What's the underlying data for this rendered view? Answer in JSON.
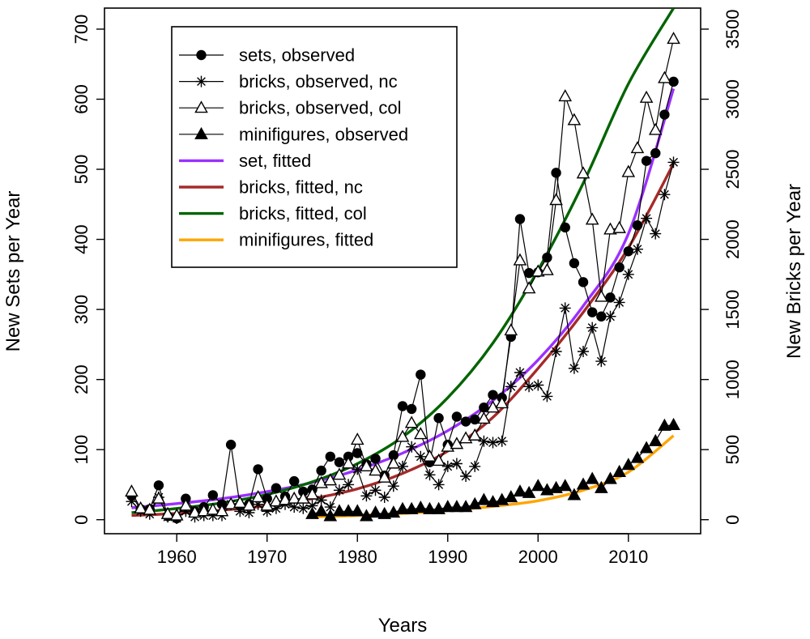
{
  "chart_data": {
    "type": "line",
    "xlabel": "Years",
    "ylabel_left": "New Sets per Year",
    "ylabel_right": "New Bricks per Year",
    "xlim": [
      1952,
      2018
    ],
    "ylim_left": [
      -20,
      730
    ],
    "ylim_right": [
      -100,
      3650
    ],
    "x_ticks": [
      1960,
      1970,
      1980,
      1990,
      2000,
      2010
    ],
    "y_ticks_left": [
      0,
      100,
      200,
      300,
      400,
      500,
      600,
      700
    ],
    "y_ticks_right": [
      0,
      500,
      1000,
      1500,
      2000,
      2500,
      3000,
      3500
    ],
    "grid": false,
    "legend_position": "top-left",
    "series": [
      {
        "name": "sets, observed",
        "axis": "left",
        "marker": "circle-filled",
        "color": "#000000",
        "x": [
          1955,
          1956,
          1957,
          1958,
          1959,
          1960,
          1961,
          1962,
          1963,
          1964,
          1965,
          1966,
          1967,
          1968,
          1969,
          1970,
          1971,
          1972,
          1973,
          1974,
          1975,
          1976,
          1977,
          1978,
          1979,
          1980,
          1981,
          1982,
          1983,
          1984,
          1985,
          1986,
          1987,
          1988,
          1989,
          1990,
          1991,
          1992,
          1993,
          1994,
          1995,
          1996,
          1997,
          1998,
          1999,
          2000,
          2001,
          2002,
          2003,
          2004,
          2005,
          2006,
          2007,
          2008,
          2009,
          2010,
          2011,
          2012,
          2013,
          2014,
          2015
        ],
        "y": [
          34,
          15,
          15,
          49,
          5,
          2,
          30,
          12,
          18,
          35,
          22,
          107,
          20,
          22,
          72,
          30,
          45,
          33,
          55,
          40,
          43,
          70,
          90,
          82,
          90,
          95,
          79,
          87,
          63,
          92,
          162,
          158,
          207,
          82,
          145,
          107,
          147,
          140,
          143,
          160,
          178,
          174,
          261,
          429,
          352,
          353,
          374,
          495,
          417,
          366,
          339,
          296,
          290,
          317,
          360,
          383,
          420,
          512,
          523,
          578,
          625
        ]
      },
      {
        "name": "bricks, observed, nc",
        "axis": "right",
        "marker": "asterisk",
        "color": "#000000",
        "x": [
          1955,
          1956,
          1957,
          1958,
          1959,
          1960,
          1961,
          1962,
          1963,
          1964,
          1965,
          1966,
          1967,
          1968,
          1969,
          1970,
          1971,
          1972,
          1973,
          1974,
          1975,
          1976,
          1977,
          1978,
          1979,
          1980,
          1981,
          1982,
          1983,
          1984,
          1985,
          1986,
          1987,
          1988,
          1989,
          1990,
          1991,
          1992,
          1993,
          1994,
          1995,
          1996,
          1997,
          1998,
          1999,
          2000,
          2001,
          2002,
          2003,
          2004,
          2005,
          2006,
          2007,
          2008,
          2009,
          2010,
          2011,
          2012,
          2013,
          2014,
          2015
        ],
        "y": [
          130,
          60,
          40,
          160,
          20,
          10,
          60,
          20,
          30,
          30,
          30,
          110,
          60,
          50,
          110,
          60,
          80,
          110,
          90,
          80,
          100,
          140,
          90,
          210,
          250,
          360,
          170,
          210,
          160,
          240,
          380,
          520,
          450,
          320,
          250,
          380,
          400,
          310,
          380,
          560,
          550,
          560,
          950,
          1050,
          950,
          960,
          880,
          1200,
          1510,
          1080,
          1200,
          1370,
          1130,
          1450,
          1550,
          1750,
          1930,
          2150,
          2040,
          2320,
          2550
        ]
      },
      {
        "name": "bricks, observed, col",
        "axis": "right",
        "marker": "triangle-open",
        "color": "#000000",
        "x": [
          1955,
          1956,
          1957,
          1958,
          1959,
          1960,
          1961,
          1962,
          1963,
          1964,
          1965,
          1966,
          1967,
          1968,
          1969,
          1970,
          1971,
          1972,
          1973,
          1974,
          1975,
          1976,
          1977,
          1978,
          1979,
          1980,
          1981,
          1982,
          1983,
          1984,
          1985,
          1986,
          1987,
          1988,
          1989,
          1990,
          1991,
          1992,
          1993,
          1994,
          1995,
          1996,
          1997,
          1998,
          1999,
          2000,
          2001,
          2002,
          2003,
          2004,
          2005,
          2006,
          2007,
          2008,
          2009,
          2010,
          2011,
          2012,
          2013,
          2014,
          2015
        ],
        "y": [
          200,
          80,
          70,
          150,
          40,
          30,
          100,
          50,
          60,
          70,
          60,
          110,
          120,
          100,
          160,
          100,
          130,
          140,
          150,
          150,
          180,
          260,
          280,
          320,
          400,
          570,
          380,
          350,
          300,
          400,
          590,
          690,
          610,
          450,
          420,
          520,
          540,
          580,
          600,
          720,
          800,
          830,
          1350,
          1850,
          1650,
          1770,
          1780,
          2280,
          3020,
          2850,
          2470,
          2140,
          1590,
          2070,
          2080,
          2480,
          2650,
          3010,
          2780,
          3150,
          3430
        ]
      },
      {
        "name": "minifigures, observed",
        "axis": "left",
        "marker": "triangle-filled",
        "color": "#000000",
        "x": [
          1975,
          1976,
          1977,
          1978,
          1979,
          1980,
          1981,
          1982,
          1983,
          1984,
          1985,
          1986,
          1987,
          1988,
          1989,
          1990,
          1991,
          1992,
          1993,
          1994,
          1995,
          1996,
          1997,
          1998,
          1999,
          2000,
          2001,
          2002,
          2003,
          2004,
          2005,
          2006,
          2007,
          2008,
          2009,
          2010,
          2011,
          2012,
          2013,
          2014,
          2015
        ],
        "y": [
          8,
          12,
          5,
          12,
          12,
          12,
          5,
          10,
          8,
          10,
          15,
          15,
          17,
          15,
          15,
          18,
          18,
          18,
          22,
          28,
          25,
          28,
          32,
          40,
          38,
          48,
          42,
          45,
          48,
          35,
          50,
          58,
          45,
          58,
          68,
          78,
          88,
          102,
          112,
          134,
          135
        ]
      },
      {
        "name": "set, fitted",
        "axis": "left",
        "line": "solid",
        "color": "#9b30ff",
        "x": [
          1955,
          1960,
          1965,
          1970,
          1975,
          1980,
          1985,
          1990,
          1995,
          2000,
          2005,
          2010,
          2015
        ],
        "y": [
          17,
          23,
          30,
          40,
          53,
          71,
          95,
          127,
          170,
          228,
          305,
          408,
          615
        ]
      },
      {
        "name": "bricks, fitted, nc",
        "axis": "right",
        "line": "solid",
        "color": "#a52a2a",
        "x": [
          1955,
          1960,
          1965,
          1970,
          1975,
          1980,
          1985,
          1990,
          1995,
          2000,
          2005,
          2010,
          2015
        ],
        "y": [
          30,
          45,
          68,
          100,
          150,
          220,
          330,
          490,
          730,
          1080,
          1480,
          1940,
          2540
        ]
      },
      {
        "name": "bricks, fitted, col",
        "axis": "right",
        "line": "solid",
        "color": "#006400",
        "x": [
          1955,
          1960,
          1965,
          1970,
          1975,
          1980,
          1985,
          1990,
          1995,
          2000,
          2005,
          2010,
          2015
        ],
        "y": [
          50,
          80,
          120,
          180,
          270,
          400,
          590,
          870,
          1260,
          1780,
          2400,
          3110,
          3650
        ]
      },
      {
        "name": "minifigures, fitted",
        "axis": "left",
        "line": "solid",
        "color": "#ffa500",
        "x": [
          1975,
          1980,
          1985,
          1990,
          1995,
          2000,
          2005,
          2010,
          2015
        ],
        "y": [
          4,
          6,
          9,
          13,
          19,
          27,
          42,
          68,
          120
        ]
      }
    ]
  }
}
